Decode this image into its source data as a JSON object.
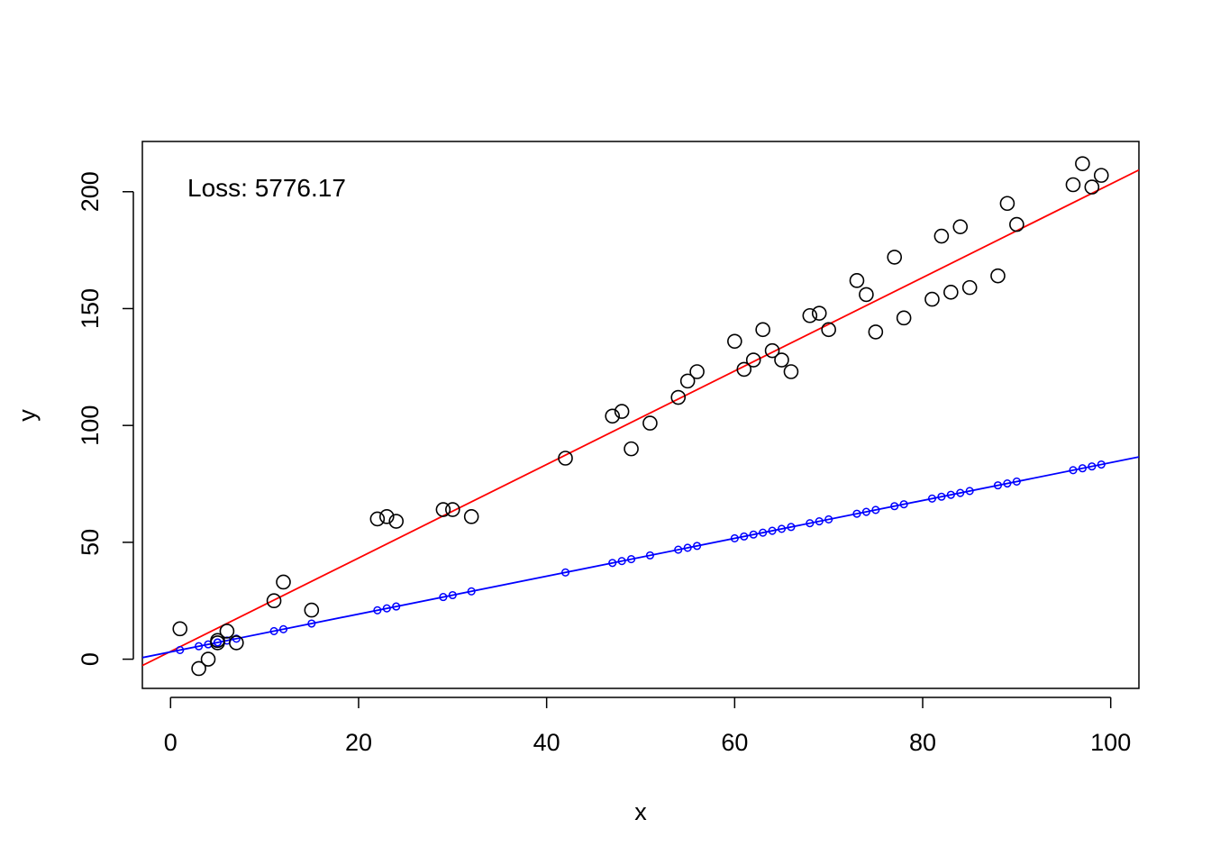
{
  "chart_data": {
    "type": "scatter",
    "title": "",
    "xlabel": "x",
    "ylabel": "y",
    "xlim": [
      -3,
      103
    ],
    "ylim": [
      -12.5,
      221.5
    ],
    "x_ticks": [
      "0",
      "20",
      "40",
      "60",
      "80",
      "100"
    ],
    "y_ticks": [
      "0",
      "50",
      "100",
      "150",
      "200"
    ],
    "grid": false,
    "annotation": "Loss: 5776.17",
    "colors": {
      "points": "#000000",
      "fit_line": "#ff0000",
      "model": "#0000ff"
    },
    "series": [
      {
        "kind": "observed-points",
        "points": [
          [
            1,
            13
          ],
          [
            3,
            -4
          ],
          [
            4,
            0
          ],
          [
            5,
            7
          ],
          [
            5,
            8
          ],
          [
            6,
            12
          ],
          [
            7,
            7
          ],
          [
            11,
            25
          ],
          [
            12,
            33
          ],
          [
            15,
            21
          ],
          [
            22,
            60
          ],
          [
            23,
            61
          ],
          [
            24,
            59
          ],
          [
            29,
            64
          ],
          [
            30,
            64
          ],
          [
            32,
            61
          ],
          [
            42,
            86
          ],
          [
            47,
            104
          ],
          [
            48,
            106
          ],
          [
            49,
            90
          ],
          [
            51,
            101
          ],
          [
            54,
            112
          ],
          [
            55,
            119
          ],
          [
            56,
            123
          ],
          [
            60,
            136
          ],
          [
            61,
            124
          ],
          [
            62,
            128
          ],
          [
            63,
            141
          ],
          [
            64,
            132
          ],
          [
            65,
            128
          ],
          [
            66,
            123
          ],
          [
            68,
            147
          ],
          [
            69,
            148
          ],
          [
            70,
            141
          ],
          [
            73,
            162
          ],
          [
            74,
            156
          ],
          [
            75,
            140
          ],
          [
            77,
            172
          ],
          [
            78,
            146
          ],
          [
            81,
            154
          ],
          [
            82,
            181
          ],
          [
            83,
            157
          ],
          [
            84,
            185
          ],
          [
            85,
            159
          ],
          [
            88,
            164
          ],
          [
            89,
            195
          ],
          [
            90,
            186
          ],
          [
            96,
            203
          ],
          [
            97,
            212
          ],
          [
            98,
            202
          ],
          [
            99,
            207
          ]
        ]
      },
      {
        "kind": "fit-line",
        "intercept": 3.3,
        "slope": 2.0
      },
      {
        "kind": "model-line",
        "intercept": 3.1,
        "slope": 0.81
      }
    ]
  }
}
